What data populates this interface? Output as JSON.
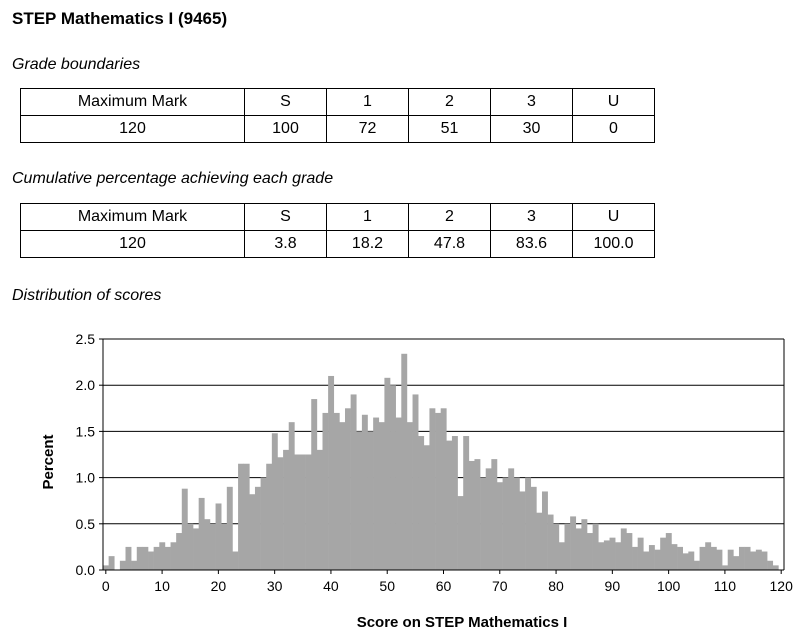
{
  "page": {
    "title": "STEP Mathematics I (9465)",
    "grade_boundaries_heading": "Grade boundaries",
    "cumulative_heading": "Cumulative percentage achieving each grade",
    "distribution_heading": "Distribution of scores"
  },
  "grade_boundaries": {
    "headers": [
      "Maximum Mark",
      "S",
      "1",
      "2",
      "3",
      "U"
    ],
    "values": [
      "120",
      "100",
      "72",
      "51",
      "30",
      "0"
    ]
  },
  "cumulative": {
    "headers": [
      "Maximum Mark",
      "S",
      "1",
      "2",
      "3",
      "U"
    ],
    "values": [
      "120",
      "3.8",
      "18.2",
      "47.8",
      "83.6",
      "100.0"
    ]
  },
  "chart_data": {
    "type": "bar",
    "xlabel": "Score on STEP Mathematics I",
    "ylabel": "Percent",
    "xlim": [
      0,
      120
    ],
    "ylim": [
      0,
      2.5
    ],
    "x_ticks": [
      "0",
      "10",
      "20",
      "30",
      "40",
      "50",
      "60",
      "70",
      "80",
      "90",
      "100",
      "110",
      "120"
    ],
    "y_ticks": [
      "0.0",
      "0.5",
      "1.0",
      "1.5",
      "2.0",
      "2.5"
    ],
    "grid": "horizontal",
    "bar_color": "#a6a6a6",
    "x": [
      0,
      1,
      2,
      3,
      4,
      5,
      6,
      7,
      8,
      9,
      10,
      11,
      12,
      13,
      14,
      15,
      16,
      17,
      18,
      19,
      20,
      21,
      22,
      23,
      24,
      25,
      26,
      27,
      28,
      29,
      30,
      31,
      32,
      33,
      34,
      35,
      36,
      37,
      38,
      39,
      40,
      41,
      42,
      43,
      44,
      45,
      46,
      47,
      48,
      49,
      50,
      51,
      52,
      53,
      54,
      55,
      56,
      57,
      58,
      59,
      60,
      61,
      62,
      63,
      64,
      65,
      66,
      67,
      68,
      69,
      70,
      71,
      72,
      73,
      74,
      75,
      76,
      77,
      78,
      79,
      80,
      81,
      82,
      83,
      84,
      85,
      86,
      87,
      88,
      89,
      90,
      91,
      92,
      93,
      94,
      95,
      96,
      97,
      98,
      99,
      100,
      101,
      102,
      103,
      104,
      105,
      106,
      107,
      108,
      109,
      110,
      111,
      112,
      113,
      114,
      115,
      116,
      117,
      118,
      119,
      120
    ],
    "values": [
      0.05,
      0.15,
      0.0,
      0.1,
      0.25,
      0.1,
      0.25,
      0.25,
      0.2,
      0.25,
      0.3,
      0.25,
      0.3,
      0.4,
      0.88,
      0.5,
      0.45,
      0.78,
      0.55,
      0.5,
      0.72,
      0.5,
      0.9,
      0.2,
      1.15,
      1.15,
      0.82,
      0.9,
      1.0,
      1.15,
      1.48,
      1.22,
      1.3,
      1.6,
      1.25,
      1.25,
      1.25,
      1.85,
      1.3,
      1.7,
      2.1,
      1.7,
      1.6,
      1.75,
      1.9,
      1.5,
      1.68,
      1.5,
      1.65,
      1.6,
      2.08,
      2.0,
      1.65,
      2.34,
      1.6,
      1.9,
      1.45,
      1.35,
      1.75,
      1.7,
      1.75,
      1.4,
      1.45,
      0.8,
      1.45,
      1.18,
      1.2,
      1.0,
      1.1,
      1.2,
      0.95,
      1.0,
      1.1,
      1.0,
      0.85,
      1.0,
      0.9,
      0.62,
      0.85,
      0.6,
      0.5,
      0.3,
      0.5,
      0.58,
      0.45,
      0.55,
      0.4,
      0.5,
      0.3,
      0.32,
      0.35,
      0.3,
      0.45,
      0.4,
      0.25,
      0.35,
      0.2,
      0.27,
      0.22,
      0.35,
      0.4,
      0.28,
      0.25,
      0.18,
      0.2,
      0.1,
      0.25,
      0.3,
      0.25,
      0.22,
      0.05,
      0.22,
      0.15,
      0.25,
      0.25,
      0.2,
      0.22,
      0.2,
      0.1,
      0.05,
      0.0
    ]
  }
}
